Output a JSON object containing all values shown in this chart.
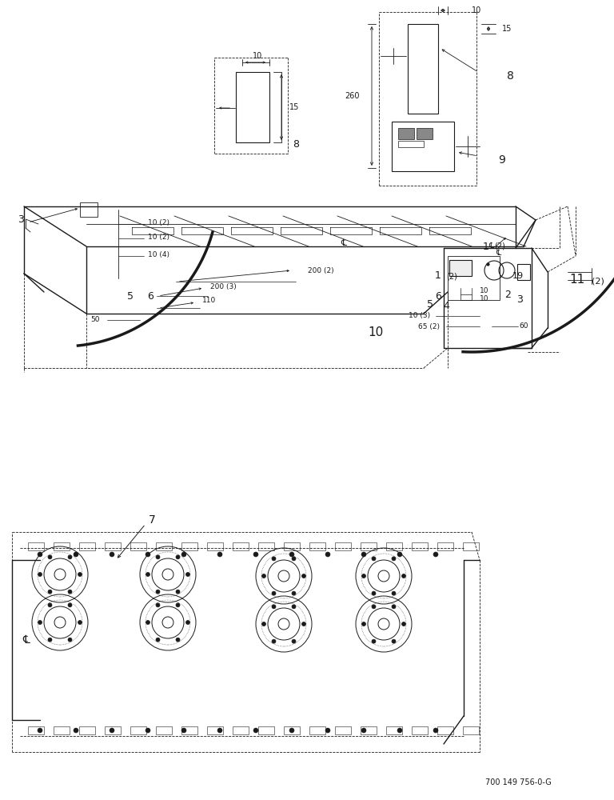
{
  "bg_color": "#ffffff",
  "line_color": "#1a1a1a",
  "footnote": "700 149 756-0-G",
  "fig_w": 7.68,
  "fig_h": 10.0,
  "dpi": 100
}
